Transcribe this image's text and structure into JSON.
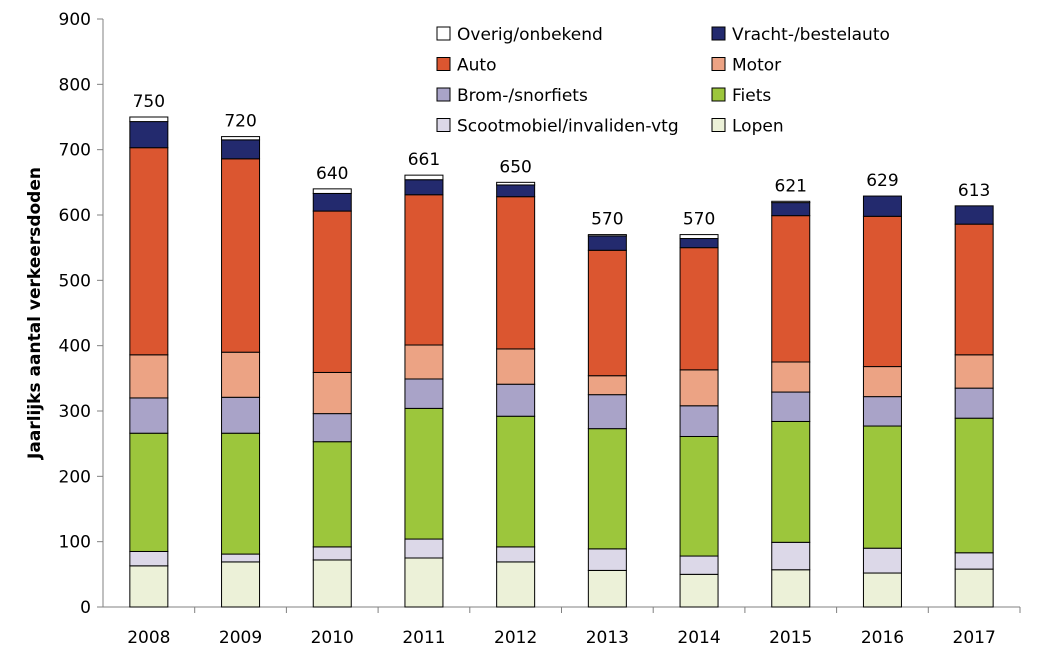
{
  "chart_data": {
    "type": "bar",
    "stacked": true,
    "title": "",
    "xlabel": "",
    "ylabel": "Jaarlijks aantal verkeersdoden",
    "ylim": [
      0,
      900
    ],
    "yticks": [
      0,
      100,
      200,
      300,
      400,
      500,
      600,
      700,
      800,
      900
    ],
    "grid": false,
    "legend_position": "top-right",
    "categories": [
      "2008",
      "2009",
      "2010",
      "2011",
      "2012",
      "2013",
      "2014",
      "2015",
      "2016",
      "2017"
    ],
    "totals": [
      750,
      720,
      640,
      661,
      650,
      570,
      570,
      621,
      629,
      613
    ],
    "series": [
      {
        "name": "Lopen",
        "color": "#ecf1d8",
        "values": [
          63,
          69,
          72,
          75,
          69,
          56,
          50,
          57,
          52,
          58
        ]
      },
      {
        "name": "Scootmobiel/invaliden-vtg",
        "color": "#dcd8e8",
        "values": [
          22,
          12,
          20,
          29,
          23,
          33,
          28,
          42,
          38,
          25
        ]
      },
      {
        "name": "Fiets",
        "color": "#9cc63c",
        "values": [
          181,
          185,
          161,
          200,
          200,
          184,
          183,
          185,
          187,
          206
        ]
      },
      {
        "name": "Brom-/snorfiets",
        "color": "#a9a3c8",
        "values": [
          54,
          55,
          43,
          45,
          49,
          52,
          47,
          45,
          45,
          46
        ]
      },
      {
        "name": "Motor",
        "color": "#eca384",
        "values": [
          66,
          69,
          63,
          52,
          54,
          29,
          55,
          46,
          46,
          51
        ]
      },
      {
        "name": "Auto",
        "color": "#db5630",
        "values": [
          317,
          296,
          247,
          230,
          233,
          192,
          187,
          224,
          230,
          200
        ]
      },
      {
        "name": "Vracht-/bestelauto",
        "color": "#232a6e",
        "values": [
          40,
          29,
          27,
          23,
          18,
          22,
          14,
          20,
          31,
          28
        ]
      },
      {
        "name": "Overig/onbekend",
        "color": "#ffffff",
        "values": [
          7,
          5,
          7,
          7,
          4,
          2,
          6,
          2,
          0,
          0
        ]
      }
    ],
    "legend_order": [
      "Overig/onbekend",
      "Vracht-/bestelauto",
      "Auto",
      "Motor",
      "Brom-/snorfiets",
      "Fiets",
      "Scootmobiel/invaliden-vtg",
      "Lopen"
    ]
  }
}
